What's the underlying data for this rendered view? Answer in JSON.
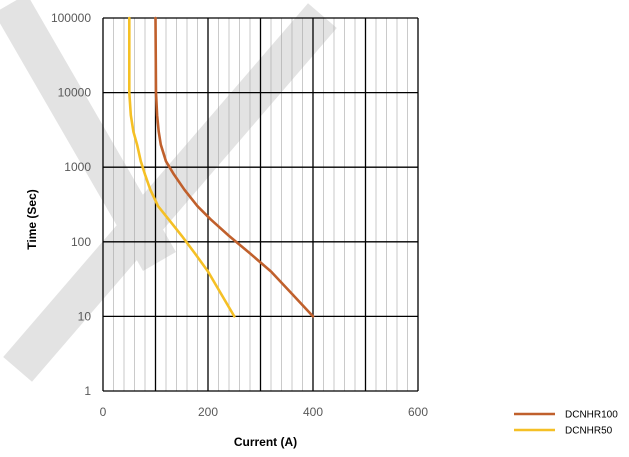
{
  "chart_data": {
    "type": "line",
    "xlabel": "Current (A)",
    "ylabel": "Time (Sec)",
    "xlim": [
      0,
      600
    ],
    "ylim": [
      1,
      100000
    ],
    "y_scale": "log",
    "x_ticks": [
      "0",
      "200",
      "400",
      "600"
    ],
    "y_ticks": [
      "1",
      "10",
      "100",
      "1000",
      "10000",
      "100000"
    ],
    "grid": true,
    "legend_position": "bottom-right",
    "watermark_color": "#e3e3e3",
    "series": [
      {
        "name": "DCNHR100",
        "color": "#c0602c",
        "x": [
          100,
          101,
          103,
          106,
          110,
          120,
          135,
          155,
          180,
          205,
          240,
          280,
          320,
          360,
          400
        ],
        "y": [
          100000,
          10000,
          5000,
          3000,
          2000,
          1200,
          800,
          500,
          300,
          200,
          120,
          70,
          40,
          20,
          10
        ]
      },
      {
        "name": "DCNHR50",
        "color": "#f5c025",
        "x": [
          50,
          50,
          53,
          58,
          65,
          72,
          80,
          90,
          105,
          125,
          150,
          175,
          200,
          225,
          250
        ],
        "y": [
          100000,
          10000,
          5000,
          3000,
          2000,
          1200,
          800,
          500,
          300,
          200,
          120,
          70,
          40,
          20,
          10
        ]
      }
    ]
  }
}
